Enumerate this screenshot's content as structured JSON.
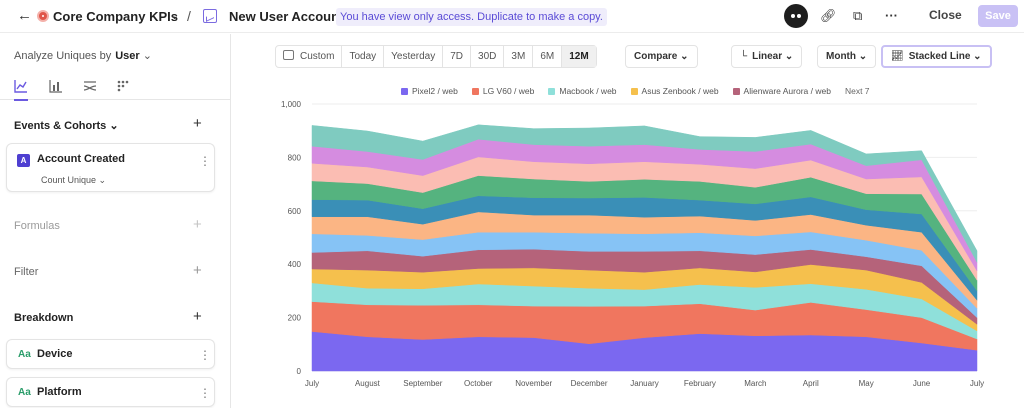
{
  "topbar": {
    "project_title": "Core Company KPIs",
    "report_title": "New User Accounts",
    "view_only_notice": "You have view only access. Duplicate to make a copy.",
    "close_label": "Close",
    "save_label": "Save"
  },
  "sidebar": {
    "analyze_label": "Analyze Uniques by",
    "analyze_value": "User",
    "events_title": "Events & Cohorts",
    "event_badge": "A",
    "event_name": "Account Created",
    "event_measure": "Count Unique",
    "formulas_title": "Formulas",
    "filter_title": "Filter",
    "breakdown_title": "Breakdown",
    "breakdowns": [
      {
        "badge": "Aa",
        "label": "Device"
      },
      {
        "badge": "Aa",
        "label": "Platform"
      }
    ]
  },
  "toolbar": {
    "date_ranges": [
      "Custom",
      "Today",
      "Yesterday",
      "7D",
      "30D",
      "3M",
      "6M",
      "12M"
    ],
    "active_range": "12M",
    "compare_label": "Compare",
    "scale_label": "Linear",
    "interval_label": "Month",
    "chart_type_label": "Stacked Line"
  },
  "legend": {
    "items": [
      {
        "label": "Pixel2 / web",
        "color": "#7b68f0"
      },
      {
        "label": "LG V60 / web",
        "color": "#f0765f"
      },
      {
        "label": "Macbook / web",
        "color": "#8fe0da"
      },
      {
        "label": "Asus Zenbook / web",
        "color": "#f5c04d"
      },
      {
        "label": "Alienware Aurora / web",
        "color": "#b5637a"
      }
    ],
    "more_label": "Next 7"
  },
  "chart_data": {
    "type": "area",
    "stacked": true,
    "categories": [
      "July",
      "August",
      "September",
      "October",
      "November",
      "December",
      "January",
      "February",
      "March",
      "April",
      "May",
      "June",
      "July"
    ],
    "ylim": [
      0,
      1000
    ],
    "yticks": [
      "0",
      "200",
      "400",
      "600",
      "800",
      "1,000"
    ],
    "grid": true,
    "legend_position": "top",
    "series": [
      {
        "name": "Pixel2 / web",
        "color": "#7b68f0",
        "values": [
          148,
          128,
          118,
          128,
          125,
          102,
          125,
          140,
          132,
          135,
          128,
          105,
          78
        ]
      },
      {
        "name": "LG V60 / web",
        "color": "#f0765f",
        "values": [
          112,
          120,
          128,
          120,
          118,
          140,
          118,
          112,
          96,
          122,
          102,
          95,
          42
        ]
      },
      {
        "name": "Macbook / web",
        "color": "#8fe0da",
        "values": [
          70,
          62,
          62,
          78,
          75,
          68,
          62,
          72,
          85,
          70,
          76,
          70,
          30
        ]
      },
      {
        "name": "Asus Zenbook / web",
        "color": "#f5c04d",
        "values": [
          52,
          68,
          62,
          58,
          68,
          68,
          65,
          62,
          58,
          72,
          72,
          62,
          25
        ]
      },
      {
        "name": "Alienware Aurora / web",
        "color": "#b5637a",
        "values": [
          62,
          72,
          60,
          70,
          70,
          70,
          78,
          64,
          65,
          56,
          50,
          62,
          25
        ]
      },
      {
        "values": [
          70,
          58,
          62,
          66,
          64,
          68,
          66,
          68,
          70,
          66,
          62,
          58,
          35
        ],
        "color": "#86c3f5"
      },
      {
        "values": [
          64,
          70,
          58,
          76,
          64,
          68,
          62,
          62,
          58,
          65,
          56,
          68,
          30
        ],
        "color": "#fbb584"
      },
      {
        "values": [
          64,
          62,
          58,
          60,
          65,
          64,
          74,
          60,
          62,
          66,
          58,
          68,
          35
        ],
        "color": "#3a8fb7"
      },
      {
        "values": [
          70,
          62,
          60,
          76,
          70,
          62,
          68,
          70,
          62,
          74,
          60,
          75,
          40
        ],
        "color": "#55b37f"
      },
      {
        "values": [
          66,
          62,
          64,
          70,
          65,
          66,
          66,
          64,
          70,
          64,
          55,
          64,
          35
        ],
        "color": "#fbbdb3"
      },
      {
        "values": [
          64,
          58,
          60,
          66,
          64,
          66,
          64,
          56,
          64,
          60,
          50,
          64,
          32
        ],
        "color": "#d58ce0"
      },
      {
        "values": [
          78,
          77,
          69,
          54,
          60,
          68,
          70,
          48,
          53,
          51,
          44,
          34,
          43
        ],
        "color": "#7fcbc0"
      }
    ]
  }
}
